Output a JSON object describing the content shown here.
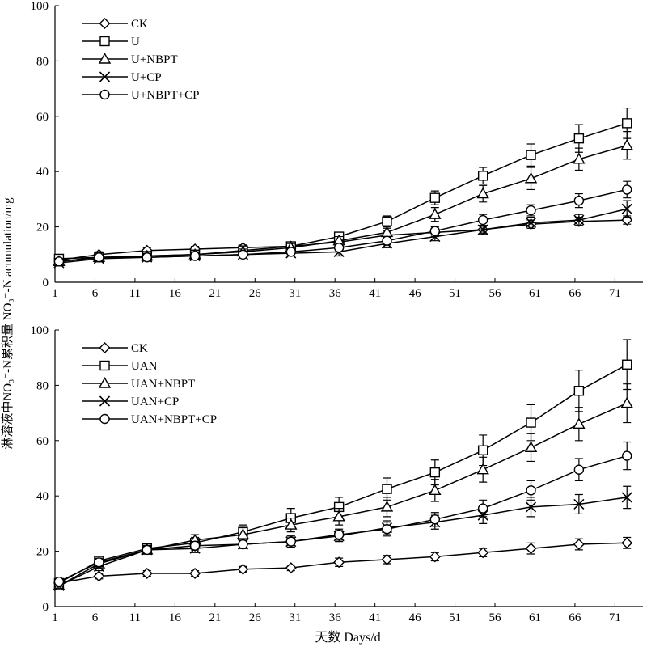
{
  "figure": {
    "ylabel_shared": "淋溶液中NO₃⁻-N累积量  NO₃⁻-N acumulation/mg",
    "xlabel": "天数 Days/d"
  },
  "chart_data": [
    {
      "type": "line",
      "xticks": [
        1,
        6,
        11,
        16,
        21,
        26,
        31,
        36,
        41,
        46,
        51,
        56,
        61,
        66,
        71
      ],
      "xlim": [
        1,
        74.5
      ],
      "yticks": [
        0,
        20,
        40,
        60,
        80,
        100
      ],
      "ylim": [
        0,
        100
      ],
      "grid": false,
      "legend_position": "top-left",
      "x": [
        1.5,
        6.5,
        12.5,
        18.5,
        24.5,
        30.5,
        36.5,
        42.5,
        48.5,
        54.5,
        60.5,
        66.5,
        72.5
      ],
      "series": [
        {
          "name": "CK",
          "marker": "diamond",
          "values": [
            8.0,
            10.0,
            11.5,
            12.0,
            12.5,
            13.0,
            14.5,
            17.0,
            18.0,
            19.0,
            21.0,
            22.0,
            22.5
          ],
          "errors": [
            1.0,
            1.0,
            1.0,
            1.0,
            1.0,
            1.0,
            1.0,
            1.5,
            1.5,
            1.5,
            1.5,
            1.5,
            1.5
          ]
        },
        {
          "name": "U",
          "marker": "square",
          "values": [
            8.5,
            9.0,
            9.5,
            10.0,
            11.5,
            13.0,
            16.5,
            22.0,
            30.5,
            38.5,
            46.0,
            52.0,
            57.5
          ],
          "errors": [
            1.0,
            1.0,
            1.0,
            1.0,
            1.0,
            1.5,
            1.5,
            2.0,
            2.5,
            3.0,
            4.0,
            5.0,
            5.5
          ]
        },
        {
          "name": "U+NBPT",
          "marker": "triangle",
          "values": [
            7.5,
            9.0,
            9.5,
            10.0,
            11.0,
            12.5,
            15.0,
            18.0,
            24.5,
            32.0,
            37.5,
            44.5,
            49.5
          ],
          "errors": [
            1.0,
            1.0,
            1.0,
            1.0,
            1.0,
            1.5,
            1.5,
            1.5,
            2.5,
            3.0,
            4.0,
            4.0,
            5.0
          ]
        },
        {
          "name": "U+CP",
          "marker": "cross",
          "values": [
            7.0,
            8.5,
            9.0,
            9.5,
            10.0,
            10.5,
            11.0,
            14.0,
            16.5,
            19.0,
            21.5,
            22.5,
            26.5
          ],
          "errors": [
            1.0,
            1.0,
            1.0,
            1.0,
            1.0,
            1.0,
            1.5,
            1.5,
            1.5,
            1.5,
            2.0,
            2.0,
            3.0
          ]
        },
        {
          "name": "U+NBPT+CP",
          "marker": "circle",
          "values": [
            7.5,
            9.0,
            9.0,
            9.5,
            10.0,
            11.0,
            12.5,
            15.0,
            18.5,
            22.5,
            26.0,
            29.5,
            33.5
          ],
          "errors": [
            1.0,
            1.0,
            1.0,
            1.0,
            1.0,
            1.0,
            1.5,
            1.5,
            1.5,
            2.0,
            2.0,
            2.5,
            3.0
          ]
        }
      ]
    },
    {
      "type": "line",
      "xticks": [
        1,
        6,
        11,
        16,
        21,
        26,
        31,
        36,
        41,
        46,
        51,
        56,
        61,
        66,
        71
      ],
      "xlim": [
        1,
        74.5
      ],
      "yticks": [
        0,
        20,
        40,
        60,
        80,
        100
      ],
      "ylim": [
        0,
        100
      ],
      "grid": false,
      "legend_position": "top-left",
      "x": [
        1.5,
        6.5,
        12.5,
        18.5,
        24.5,
        30.5,
        36.5,
        42.5,
        48.5,
        54.5,
        60.5,
        66.5,
        72.5
      ],
      "series": [
        {
          "name": "CK",
          "marker": "diamond",
          "values": [
            8.5,
            11.0,
            12.0,
            12.0,
            13.5,
            14.0,
            16.0,
            17.0,
            18.0,
            19.5,
            21.0,
            22.5,
            23.0
          ],
          "errors": [
            1.0,
            1.0,
            1.0,
            1.0,
            1.0,
            1.0,
            1.5,
            1.5,
            1.5,
            1.5,
            2.0,
            2.0,
            2.0
          ]
        },
        {
          "name": "UAN",
          "marker": "square",
          "values": [
            8.5,
            16.5,
            21.0,
            23.0,
            27.0,
            32.0,
            36.0,
            42.5,
            48.5,
            56.5,
            66.5,
            78.0,
            87.5
          ],
          "errors": [
            1.0,
            1.5,
            1.5,
            2.0,
            2.5,
            3.5,
            3.5,
            4.0,
            4.5,
            5.5,
            6.5,
            7.5,
            9.0
          ]
        },
        {
          "name": "UAN+NBPT",
          "marker": "triangle",
          "values": [
            7.5,
            15.5,
            20.5,
            24.0,
            26.0,
            29.5,
            32.5,
            36.0,
            42.0,
            49.5,
            57.5,
            66.0,
            73.5
          ],
          "errors": [
            1.0,
            1.5,
            1.5,
            2.0,
            2.5,
            2.5,
            3.0,
            3.5,
            4.0,
            4.5,
            5.0,
            6.0,
            7.0
          ]
        },
        {
          "name": "UAN+CP",
          "marker": "cross",
          "values": [
            7.5,
            14.5,
            20.5,
            21.0,
            22.5,
            23.5,
            25.5,
            28.5,
            30.5,
            33.0,
            36.0,
            37.0,
            39.5
          ],
          "errors": [
            1.0,
            1.5,
            1.5,
            1.5,
            1.5,
            2.0,
            2.0,
            2.5,
            2.5,
            3.0,
            3.5,
            3.5,
            4.0
          ]
        },
        {
          "name": "UAN+NBPT+CP",
          "marker": "circle",
          "values": [
            9.0,
            16.0,
            20.5,
            22.0,
            22.5,
            23.5,
            26.0,
            28.0,
            31.5,
            35.5,
            42.0,
            49.5,
            54.5
          ],
          "errors": [
            1.0,
            1.5,
            1.5,
            1.5,
            1.5,
            2.0,
            2.0,
            2.5,
            2.5,
            3.0,
            3.5,
            4.0,
            5.0
          ]
        }
      ]
    }
  ]
}
